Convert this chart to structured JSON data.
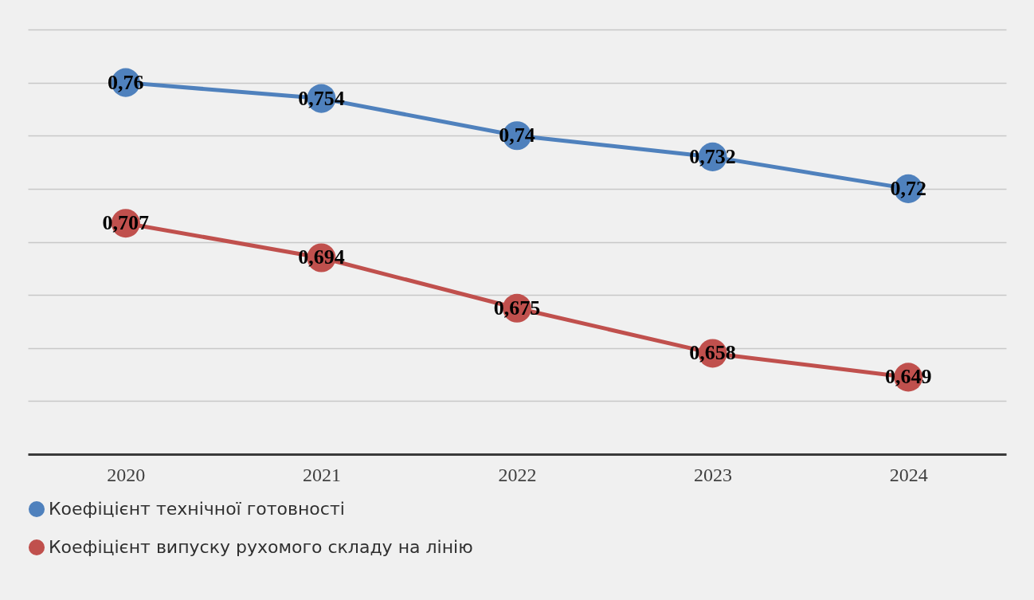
{
  "chart_data": {
    "type": "line",
    "categories": [
      "2020",
      "2021",
      "2022",
      "2023",
      "2024"
    ],
    "series": [
      {
        "name": "Коефіцієнт технічної готовності",
        "color": "#4f81bd",
        "values": [
          0.76,
          0.754,
          0.74,
          0.732,
          0.72
        ],
        "value_labels": [
          "0,76",
          "0,754",
          "0,74",
          "0,732",
          "0,72"
        ]
      },
      {
        "name": "Коефіцієнт випуску рухомого складу на лінію",
        "color": "#c0504d",
        "values": [
          0.707,
          0.694,
          0.675,
          0.658,
          0.649
        ],
        "value_labels": [
          "0,707",
          "0,694",
          "0,675",
          "0,658",
          "0,649"
        ]
      }
    ],
    "grid": "y",
    "legend": "bottom",
    "tick_labels": "x",
    "marker": "circle"
  }
}
